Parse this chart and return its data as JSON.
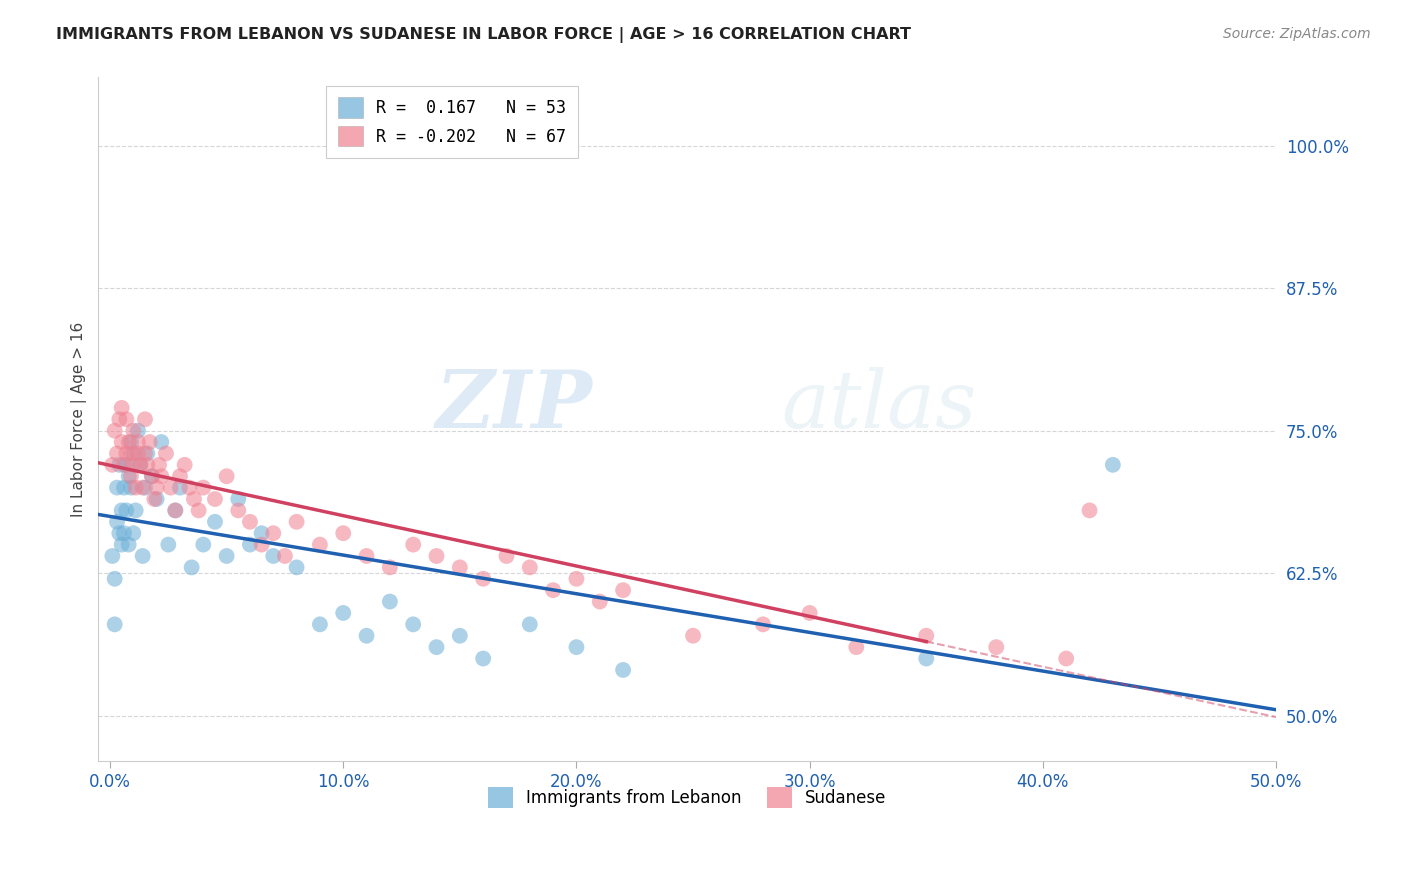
{
  "title": "IMMIGRANTS FROM LEBANON VS SUDANESE IN LABOR FORCE | AGE > 16 CORRELATION CHART",
  "source": "Source: ZipAtlas.com",
  "ylabel": "In Labor Force | Age > 16",
  "xlim": [
    -0.005,
    0.5
  ],
  "ylim": [
    0.46,
    1.06
  ],
  "yticks": [
    0.5,
    0.625,
    0.75,
    0.875,
    1.0
  ],
  "ytick_labels": [
    "50.0%",
    "62.5%",
    "75.0%",
    "87.5%",
    "100.0%"
  ],
  "xticks": [
    0.0,
    0.1,
    0.2,
    0.3,
    0.4,
    0.5
  ],
  "xtick_labels": [
    "0.0%",
    "10.0%",
    "20.0%",
    "30.0%",
    "40.0%",
    "50.0%"
  ],
  "legend_r1": "R =  0.167   N = 53",
  "legend_r2": "R = -0.202   N = 67",
  "blue_color": "#6baed6",
  "pink_color": "#f08090",
  "line_blue": "#2060b0",
  "line_pink": "#d04060",
  "watermark_zip": "ZIP",
  "watermark_atlas": "atlas",
  "lebanon_x": [
    0.001,
    0.002,
    0.002,
    0.003,
    0.003,
    0.004,
    0.004,
    0.005,
    0.005,
    0.006,
    0.006,
    0.007,
    0.007,
    0.008,
    0.008,
    0.009,
    0.009,
    0.01,
    0.01,
    0.011,
    0.012,
    0.013,
    0.014,
    0.015,
    0.016,
    0.018,
    0.02,
    0.022,
    0.025,
    0.028,
    0.03,
    0.035,
    0.04,
    0.045,
    0.05,
    0.055,
    0.06,
    0.065,
    0.07,
    0.08,
    0.09,
    0.1,
    0.11,
    0.12,
    0.13,
    0.14,
    0.15,
    0.16,
    0.18,
    0.2,
    0.22,
    0.35,
    0.43
  ],
  "lebanon_y": [
    0.64,
    0.62,
    0.58,
    0.67,
    0.7,
    0.66,
    0.72,
    0.65,
    0.68,
    0.7,
    0.66,
    0.72,
    0.68,
    0.65,
    0.71,
    0.74,
    0.7,
    0.73,
    0.66,
    0.68,
    0.75,
    0.72,
    0.64,
    0.7,
    0.73,
    0.71,
    0.69,
    0.74,
    0.65,
    0.68,
    0.7,
    0.63,
    0.65,
    0.67,
    0.64,
    0.69,
    0.65,
    0.66,
    0.64,
    0.63,
    0.58,
    0.59,
    0.57,
    0.6,
    0.58,
    0.56,
    0.57,
    0.55,
    0.58,
    0.56,
    0.54,
    0.55,
    0.72
  ],
  "sudanese_x": [
    0.001,
    0.002,
    0.003,
    0.004,
    0.005,
    0.005,
    0.006,
    0.007,
    0.007,
    0.008,
    0.009,
    0.009,
    0.01,
    0.01,
    0.011,
    0.012,
    0.012,
    0.013,
    0.014,
    0.015,
    0.015,
    0.016,
    0.017,
    0.018,
    0.019,
    0.02,
    0.021,
    0.022,
    0.024,
    0.026,
    0.028,
    0.03,
    0.032,
    0.034,
    0.036,
    0.038,
    0.04,
    0.045,
    0.05,
    0.055,
    0.06,
    0.065,
    0.07,
    0.075,
    0.08,
    0.09,
    0.1,
    0.11,
    0.12,
    0.13,
    0.14,
    0.15,
    0.16,
    0.17,
    0.18,
    0.19,
    0.2,
    0.21,
    0.22,
    0.25,
    0.28,
    0.3,
    0.32,
    0.35,
    0.38,
    0.41,
    0.42
  ],
  "sudanese_y": [
    0.72,
    0.75,
    0.73,
    0.76,
    0.77,
    0.74,
    0.72,
    0.73,
    0.76,
    0.74,
    0.73,
    0.71,
    0.72,
    0.75,
    0.7,
    0.73,
    0.74,
    0.72,
    0.7,
    0.73,
    0.76,
    0.72,
    0.74,
    0.71,
    0.69,
    0.7,
    0.72,
    0.71,
    0.73,
    0.7,
    0.68,
    0.71,
    0.72,
    0.7,
    0.69,
    0.68,
    0.7,
    0.69,
    0.71,
    0.68,
    0.67,
    0.65,
    0.66,
    0.64,
    0.67,
    0.65,
    0.66,
    0.64,
    0.63,
    0.65,
    0.64,
    0.63,
    0.62,
    0.64,
    0.63,
    0.61,
    0.62,
    0.6,
    0.61,
    0.57,
    0.58,
    0.59,
    0.56,
    0.57,
    0.56,
    0.55,
    0.68
  ]
}
